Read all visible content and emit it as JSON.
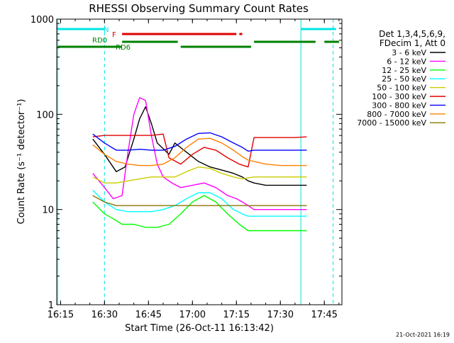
{
  "chart_data": {
    "type": "line",
    "title": "RHESSI Observing Summary Count Rates",
    "xlabel": "Start Time (26-Oct-11 16:13:42)",
    "ylabel": "Count Rate (s⁻¹ detector⁻¹)",
    "y_scale": "log",
    "ylim": [
      1,
      1000
    ],
    "xlim": [
      "16:13:42",
      "17:51:00"
    ],
    "x_ticks": [
      "16:15",
      "16:30",
      "16:45",
      "17:00",
      "17:15",
      "17:30",
      "17:45"
    ],
    "y_ticks": [
      "1",
      "10",
      "100",
      "1000"
    ],
    "grid": false,
    "legend_position": "right",
    "legend_header": [
      "Det 1,3,4,5,6,9,",
      "FDecim 1, Att 0"
    ],
    "footer_date": "21-Oct-2021 16:19",
    "flags": [
      {
        "label": "N",
        "color": "#00e5e5",
        "segments": [
          [
            "16:14",
            "16:30"
          ],
          [
            "17:37",
            "17:49"
          ]
        ]
      },
      {
        "label": "F",
        "color": "#e00000",
        "segments": [
          [
            "16:36",
            "17:15"
          ],
          [
            "17:16",
            "17:17"
          ]
        ]
      },
      {
        "label": "RD0",
        "color": "#008000",
        "segments": [
          [
            "16:36",
            "16:55"
          ],
          [
            "17:21",
            "17:42"
          ],
          [
            "17:45",
            "17:50"
          ]
        ]
      },
      {
        "label": "RD6",
        "color": "#008000",
        "segments": [
          [
            "16:14",
            "16:36"
          ],
          [
            "16:56",
            "17:20"
          ]
        ]
      }
    ],
    "night_boundaries": [
      "16:14",
      "17:37"
    ],
    "day_boundaries": [
      "16:30",
      "17:48"
    ],
    "series": [
      {
        "name": "3 - 6 keV",
        "color": "#000000",
        "points": [
          [
            "16:26",
            55
          ],
          [
            "16:30",
            38
          ],
          [
            "16:34",
            25
          ],
          [
            "16:37",
            28
          ],
          [
            "16:40",
            55
          ],
          [
            "16:42",
            90
          ],
          [
            "16:44",
            120
          ],
          [
            "16:46",
            80
          ],
          [
            "16:48",
            50
          ],
          [
            "16:52",
            38
          ],
          [
            "16:54",
            50
          ],
          [
            "16:58",
            40
          ],
          [
            "17:02",
            32
          ],
          [
            "17:06",
            28
          ],
          [
            "17:10",
            26
          ],
          [
            "17:14",
            24
          ],
          [
            "17:17",
            22
          ],
          [
            "17:19",
            20
          ],
          [
            "17:21",
            19
          ],
          [
            "17:25",
            18
          ],
          [
            "17:30",
            18
          ],
          [
            "17:35",
            18
          ],
          [
            "17:39",
            18
          ]
        ]
      },
      {
        "name": "6 - 12 keV",
        "color": "#ff00ff",
        "points": [
          [
            "16:26",
            24
          ],
          [
            "16:30",
            17
          ],
          [
            "16:33",
            13
          ],
          [
            "16:36",
            14
          ],
          [
            "16:38",
            40
          ],
          [
            "16:40",
            100
          ],
          [
            "16:42",
            150
          ],
          [
            "16:44",
            140
          ],
          [
            "16:46",
            60
          ],
          [
            "16:48",
            30
          ],
          [
            "16:50",
            22
          ],
          [
            "16:53",
            19
          ],
          [
            "16:56",
            17
          ],
          [
            "17:00",
            18
          ],
          [
            "17:04",
            19
          ],
          [
            "17:08",
            17
          ],
          [
            "17:12",
            14
          ],
          [
            "17:15",
            13
          ],
          [
            "17:17",
            12
          ],
          [
            "17:19",
            11
          ],
          [
            "17:21",
            10
          ],
          [
            "17:25",
            10
          ],
          [
            "17:30",
            10
          ],
          [
            "17:35",
            10
          ],
          [
            "17:39",
            10
          ]
        ]
      },
      {
        "name": "12 - 25 keV",
        "color": "#00ff00",
        "points": [
          [
            "16:26",
            12
          ],
          [
            "16:30",
            9
          ],
          [
            "16:33",
            8
          ],
          [
            "16:36",
            7
          ],
          [
            "16:40",
            7
          ],
          [
            "16:44",
            6.5
          ],
          [
            "16:48",
            6.5
          ],
          [
            "16:52",
            7
          ],
          [
            "16:56",
            9
          ],
          [
            "17:00",
            12
          ],
          [
            "17:04",
            14
          ],
          [
            "17:08",
            12
          ],
          [
            "17:12",
            9
          ],
          [
            "17:16",
            7
          ],
          [
            "17:19",
            6
          ],
          [
            "17:21",
            6
          ],
          [
            "17:25",
            6
          ],
          [
            "17:30",
            6
          ],
          [
            "17:35",
            6
          ],
          [
            "17:39",
            6
          ]
        ]
      },
      {
        "name": "25 - 50 keV",
        "color": "#00ffff",
        "points": [
          [
            "16:26",
            16
          ],
          [
            "16:30",
            12
          ],
          [
            "16:34",
            10
          ],
          [
            "16:38",
            9.5
          ],
          [
            "16:42",
            9.5
          ],
          [
            "16:46",
            9.5
          ],
          [
            "16:50",
            10
          ],
          [
            "16:54",
            11
          ],
          [
            "16:58",
            13
          ],
          [
            "17:02",
            15
          ],
          [
            "17:06",
            15
          ],
          [
            "17:10",
            13
          ],
          [
            "17:14",
            10
          ],
          [
            "17:17",
            9
          ],
          [
            "17:19",
            8.5
          ],
          [
            "17:21",
            8.5
          ],
          [
            "17:25",
            8.5
          ],
          [
            "17:30",
            8.5
          ],
          [
            "17:35",
            8.5
          ],
          [
            "17:39",
            8.5
          ]
        ]
      },
      {
        "name": "50 - 100 keV",
        "color": "#cccc00",
        "points": [
          [
            "16:26",
            22
          ],
          [
            "16:30",
            19
          ],
          [
            "16:34",
            19
          ],
          [
            "16:38",
            20
          ],
          [
            "16:42",
            21
          ],
          [
            "16:46",
            22
          ],
          [
            "16:50",
            22
          ],
          [
            "16:54",
            22
          ],
          [
            "16:58",
            25
          ],
          [
            "17:02",
            28
          ],
          [
            "17:06",
            27
          ],
          [
            "17:10",
            24
          ],
          [
            "17:14",
            22
          ],
          [
            "17:17",
            21
          ],
          [
            "17:21",
            22
          ],
          [
            "17:25",
            22
          ],
          [
            "17:30",
            22
          ],
          [
            "17:35",
            22
          ],
          [
            "17:39",
            22
          ]
        ]
      },
      {
        "name": "100 - 300 keV",
        "color": "#e00000",
        "points": [
          [
            "16:26",
            58
          ],
          [
            "16:30",
            60
          ],
          [
            "16:34",
            60
          ],
          [
            "16:38",
            60
          ],
          [
            "16:42",
            60
          ],
          [
            "16:46",
            60
          ],
          [
            "16:50",
            62
          ],
          [
            "16:52",
            35
          ],
          [
            "16:56",
            30
          ],
          [
            "17:00",
            38
          ],
          [
            "17:04",
            45
          ],
          [
            "17:08",
            42
          ],
          [
            "17:12",
            35
          ],
          [
            "17:16",
            30
          ],
          [
            "17:19",
            28
          ],
          [
            "17:21",
            57
          ],
          [
            "17:25",
            57
          ],
          [
            "17:30",
            57
          ],
          [
            "17:35",
            57
          ],
          [
            "17:39",
            58
          ]
        ]
      },
      {
        "name": "300 - 800 keV",
        "color": "#0000ff",
        "points": [
          [
            "16:26",
            62
          ],
          [
            "16:30",
            50
          ],
          [
            "16:34",
            42
          ],
          [
            "16:38",
            42
          ],
          [
            "16:42",
            43
          ],
          [
            "16:46",
            42
          ],
          [
            "16:50",
            42
          ],
          [
            "16:54",
            46
          ],
          [
            "16:58",
            55
          ],
          [
            "17:02",
            63
          ],
          [
            "17:06",
            64
          ],
          [
            "17:10",
            58
          ],
          [
            "17:14",
            50
          ],
          [
            "17:17",
            45
          ],
          [
            "17:19",
            41
          ],
          [
            "17:21",
            42
          ],
          [
            "17:25",
            42
          ],
          [
            "17:30",
            42
          ],
          [
            "17:35",
            42
          ],
          [
            "17:39",
            42
          ]
        ]
      },
      {
        "name": "800 - 7000 keV",
        "color": "#ff8000",
        "points": [
          [
            "16:26",
            48
          ],
          [
            "16:30",
            38
          ],
          [
            "16:34",
            32
          ],
          [
            "16:38",
            30
          ],
          [
            "16:42",
            29
          ],
          [
            "16:46",
            29
          ],
          [
            "16:50",
            30
          ],
          [
            "16:54",
            35
          ],
          [
            "16:58",
            45
          ],
          [
            "17:02",
            55
          ],
          [
            "17:06",
            56
          ],
          [
            "17:10",
            50
          ],
          [
            "17:14",
            42
          ],
          [
            "17:17",
            36
          ],
          [
            "17:19",
            33
          ],
          [
            "17:21",
            32
          ],
          [
            "17:25",
            30
          ],
          [
            "17:30",
            29
          ],
          [
            "17:35",
            29
          ],
          [
            "17:39",
            29
          ]
        ]
      },
      {
        "name": "7000 - 15000 keV",
        "color": "#8b7500",
        "points": [
          [
            "16:26",
            14
          ],
          [
            "16:30",
            12
          ],
          [
            "16:34",
            11
          ],
          [
            "16:38",
            11
          ],
          [
            "16:42",
            11
          ],
          [
            "16:46",
            11
          ],
          [
            "16:50",
            11
          ],
          [
            "16:54",
            11
          ],
          [
            "16:58",
            11
          ],
          [
            "17:02",
            11
          ],
          [
            "17:06",
            11
          ],
          [
            "17:10",
            11
          ],
          [
            "17:14",
            11
          ],
          [
            "17:17",
            11
          ],
          [
            "17:19",
            11
          ],
          [
            "17:21",
            11
          ],
          [
            "17:25",
            11
          ],
          [
            "17:30",
            11
          ],
          [
            "17:35",
            11
          ],
          [
            "17:39",
            11
          ]
        ]
      }
    ]
  }
}
